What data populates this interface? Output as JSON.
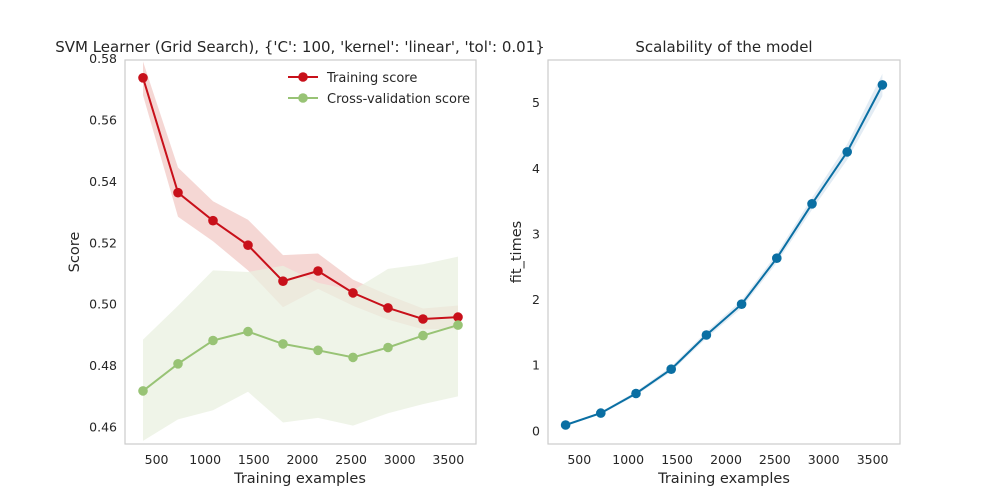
{
  "chart_data": [
    {
      "type": "line",
      "title": "SVM Learner (Grid Search), {'C': 100, 'kernel': 'linear', 'tol': 0.01}",
      "xlabel": "Training examples",
      "ylabel": "Score",
      "xlim": [
        175,
        3785
      ],
      "ylim": [
        0.4545,
        0.5795
      ],
      "xticks": [
        500,
        1000,
        1500,
        2000,
        2500,
        3000,
        3500
      ],
      "yticks": [
        0.46,
        0.48,
        0.5,
        0.52,
        0.54,
        0.56,
        0.58
      ],
      "ytick_labels": [
        "0.46",
        "0.48",
        "0.50",
        "0.52",
        "0.54",
        "0.56",
        "0.58"
      ],
      "grid": false,
      "legend": "top-right",
      "x": [
        360,
        720,
        1080,
        1440,
        1800,
        2160,
        2520,
        2880,
        3240,
        3600
      ],
      "series": [
        {
          "name": "Training score",
          "color": "#c8101a",
          "band_color": "#f2c9c5",
          "values": [
            0.5737,
            0.5363,
            0.5272,
            0.5192,
            0.5075,
            0.5108,
            0.5037,
            0.4988,
            0.4952,
            0.4958
          ],
          "band_lower": [
            0.568,
            0.5285,
            0.5205,
            0.511,
            0.499,
            0.505,
            0.4995,
            0.495,
            0.4918,
            0.492
          ],
          "band_upper": [
            0.579,
            0.5445,
            0.5335,
            0.5275,
            0.516,
            0.5165,
            0.508,
            0.503,
            0.4986,
            0.4996
          ]
        },
        {
          "name": "Cross-validation score",
          "color": "#98c375",
          "band_color": "#e9f0e0",
          "values": [
            0.4718,
            0.4806,
            0.4882,
            0.4911,
            0.4871,
            0.485,
            0.4827,
            0.4859,
            0.4898,
            0.4932
          ],
          "band_lower": [
            0.4555,
            0.4625,
            0.4655,
            0.4715,
            0.4615,
            0.463,
            0.4605,
            0.4645,
            0.4675,
            0.47
          ],
          "band_upper": [
            0.4885,
            0.4995,
            0.511,
            0.5105,
            0.5125,
            0.507,
            0.5045,
            0.5115,
            0.513,
            0.5155
          ]
        }
      ]
    },
    {
      "type": "line",
      "title": "Scalability of the model",
      "xlabel": "Training examples",
      "ylabel": "fit_times",
      "xlim": [
        180,
        3780
      ],
      "ylim": [
        -0.2,
        5.65
      ],
      "xticks": [
        500,
        1000,
        1500,
        2000,
        2500,
        3000,
        3500
      ],
      "yticks": [
        0,
        1,
        2,
        3,
        4,
        5
      ],
      "ytick_labels": [
        "0",
        "1",
        "2",
        "3",
        "4",
        "5"
      ],
      "grid": false,
      "x": [
        360,
        720,
        1080,
        1440,
        1800,
        2160,
        2520,
        2880,
        3240,
        3600
      ],
      "series": [
        {
          "color": "#0a6fa3",
          "band_color": "#d9e6f0",
          "values": [
            0.09,
            0.27,
            0.57,
            0.94,
            1.46,
            1.93,
            2.63,
            3.46,
            4.25,
            5.27
          ],
          "band_lower": [
            0.08,
            0.25,
            0.54,
            0.9,
            1.41,
            1.87,
            2.56,
            3.37,
            4.13,
            5.1
          ],
          "band_upper": [
            0.1,
            0.29,
            0.6,
            0.98,
            1.51,
            1.99,
            2.7,
            3.55,
            4.37,
            5.44
          ]
        }
      ]
    }
  ]
}
